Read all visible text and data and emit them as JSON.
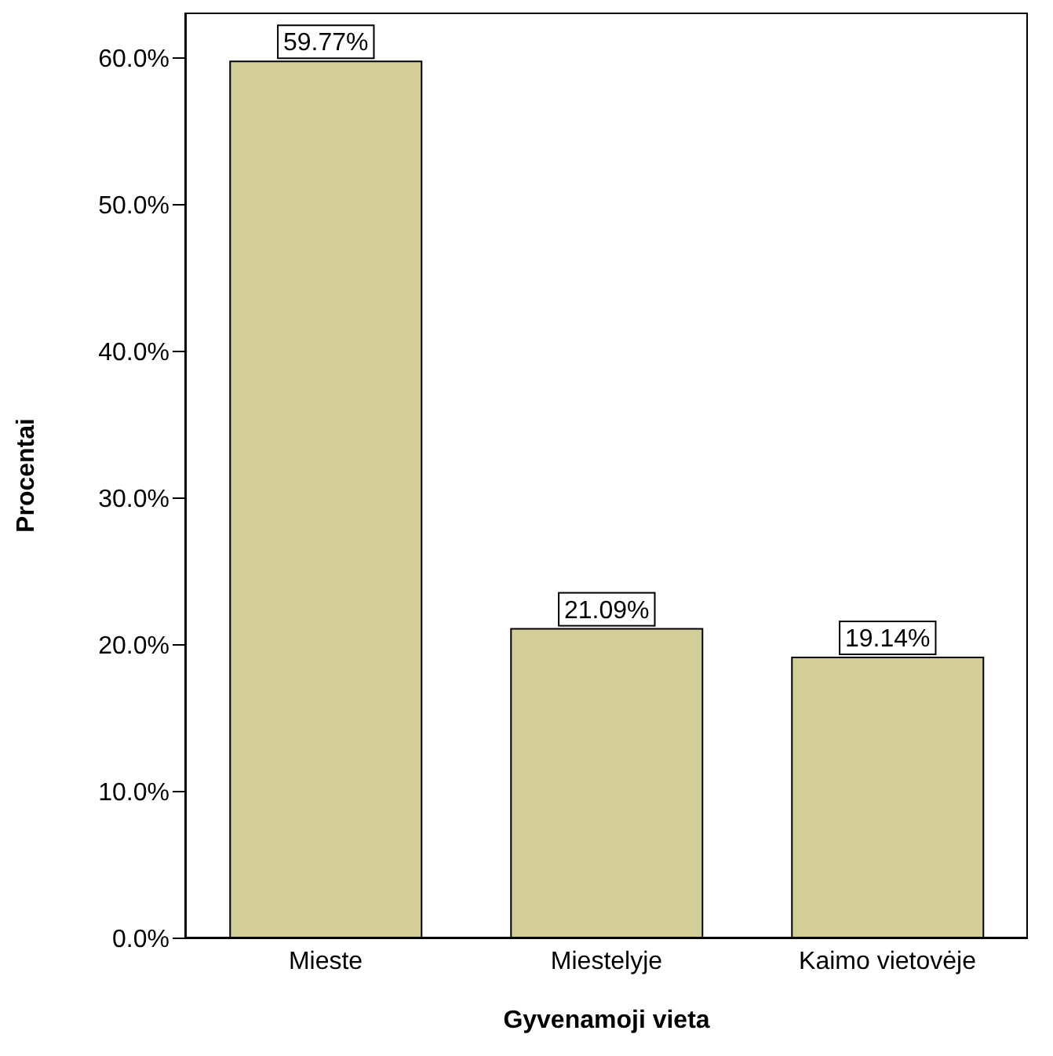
{
  "chart_data": {
    "type": "bar",
    "xlabel": "Gyvenamoji vieta",
    "ylabel": "Procentai",
    "categories": [
      "Mieste",
      "Miestelyje",
      "Kaimo vietovėje"
    ],
    "values": [
      59.77,
      21.09,
      19.14
    ],
    "value_labels": [
      "59.77%",
      "21.09%",
      "19.14%"
    ],
    "color": "#d3ce98",
    "ylim": [
      0,
      63.1
    ],
    "yticks": [
      {
        "value": 0,
        "label": "0.0%"
      },
      {
        "value": 10,
        "label": "10.0%"
      },
      {
        "value": 20,
        "label": "20.0%"
      },
      {
        "value": 30,
        "label": "30.0%"
      },
      {
        "value": 40,
        "label": "40.0%"
      },
      {
        "value": 50,
        "label": "50.0%"
      },
      {
        "value": 60,
        "label": "60.0%"
      }
    ],
    "grid": false,
    "legend": false
  }
}
